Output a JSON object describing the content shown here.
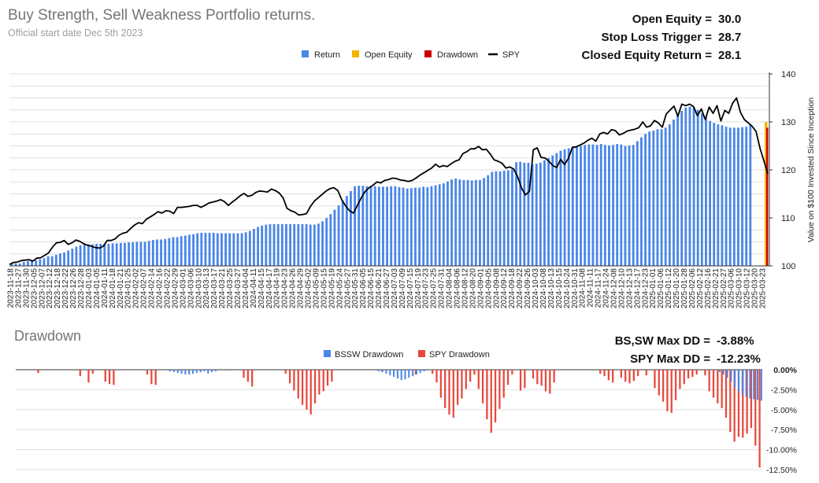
{
  "header": {
    "title": "Buy Strength, Sell Weakness Portfolio returns.",
    "subtitle": "Official start date Dec 5th 2023"
  },
  "stats": [
    {
      "label": "Open Equity =",
      "value": "30.0"
    },
    {
      "label": "Stop Loss Trigger =",
      "value": "28.7"
    },
    {
      "label": "Closed Equity Return =",
      "value": "28.1"
    }
  ],
  "drawdown_section": {
    "title": "Drawdown",
    "stats": [
      {
        "label": "BS,SW Max DD =",
        "value": "-3.88%"
      },
      {
        "label": "SPY Max DD =",
        "value": "-12.23%"
      }
    ]
  },
  "colors": {
    "return": "#4a86e8",
    "open_equity": "#f4b400",
    "drawdown": "#cc0000",
    "spy": "#000000",
    "spy_drawdown": "#e8473b",
    "grid": "#e0e0e0"
  },
  "chart_data": [
    {
      "type": "bar+line",
      "title": "Buy Strength, Sell Weakness Portfolio returns.",
      "ylabel": "Value on $100 Invested Since Inception",
      "ylim": [
        100,
        140
      ],
      "yticks": [
        100,
        110,
        120,
        130,
        140
      ],
      "legend": [
        "Return",
        "Open Equity",
        "Drawdown",
        "SPY"
      ],
      "x_tick_labels": [
        "2023-11-18",
        "2023-11-27",
        "2023-11-30",
        "2023-12-05",
        "2023-12-07",
        "2023-12-12",
        "2023-12-18",
        "2023-12-22",
        "2023-12-26",
        "2023-12-28",
        "2024-01-03",
        "2024-01-05",
        "2024-01-11",
        "2024-01-18",
        "2024-01-21",
        "2024-01-25",
        "2024-02-02",
        "2024-02-07",
        "2024-02-14",
        "2024-02-16",
        "2024-02-22",
        "2024-02-29",
        "2024-03-01",
        "2024-03-06",
        "2024-03-10",
        "2024-03-13",
        "2024-03-17",
        "2024-03-21",
        "2024-03-25",
        "2024-03-27",
        "2024-04-04",
        "2024-04-11",
        "2024-04-15",
        "2024-04-17",
        "2024-04-19",
        "2024-04-23",
        "2024-04-26",
        "2024-04-29",
        "2024-05-02",
        "2024-05-09",
        "2024-05-15",
        "2024-05-19",
        "2024-05-24",
        "2024-05-27",
        "2024-05-31",
        "2024-06-05",
        "2024-06-15",
        "2024-06-21",
        "2024-06-27",
        "2024-07-03",
        "2024-07-09",
        "2024-07-15",
        "2024-07-19",
        "2024-07-23",
        "2024-07-25",
        "2024-07-31",
        "2024-08-04",
        "2024-08-06",
        "2024-08-12",
        "2024-08-20",
        "2024-09-01",
        "2024-09-05",
        "2024-09-08",
        "2024-09-12",
        "2024-09-18",
        "2024-09-22",
        "2024-09-26",
        "2024-10-03",
        "2024-10-08",
        "2024-10-13",
        "2024-10-15",
        "2024-10-24",
        "2024-10-31",
        "2024-11-08",
        "2024-11-11",
        "2024-11-17",
        "2024-11-24",
        "2024-12-08",
        "2024-12-10",
        "2024-12-13",
        "2024-12-17",
        "2024-12-23",
        "2025-01-01",
        "2025-01-06",
        "2025-01-12",
        "2025-01-20",
        "2025-01-28",
        "2025-02-06",
        "2025-02-12",
        "2025-02-16",
        "2025-02-21",
        "2025-02-27",
        "2025-03-06",
        "2025-03-10",
        "2025-03-12",
        "2025-03-20",
        "2025-03-23"
      ],
      "return_series": [
        100.5,
        100.5,
        100.5,
        100.8,
        101,
        101,
        101.2,
        101.4,
        101.6,
        102,
        102,
        102.3,
        102.6,
        102.8,
        103.2,
        103.6,
        104,
        104.3,
        104.4,
        104.5,
        104.5,
        104.6,
        104.6,
        104.6,
        104.6,
        104.7,
        104.7,
        104.8,
        104.8,
        104.9,
        104.9,
        105,
        105,
        105,
        105.2,
        105.4,
        105.5,
        105.5,
        105.6,
        105.8,
        106,
        106,
        106.2,
        106.3,
        106.5,
        106.6,
        106.8,
        106.9,
        106.9,
        106.9,
        106.9,
        106.8,
        106.8,
        106.8,
        106.8,
        106.8,
        106.8,
        106.8,
        107,
        107.3,
        107.7,
        108.1,
        108.4,
        108.6,
        108.7,
        108.7,
        108.7,
        108.7,
        108.7,
        108.7,
        108.7,
        108.7,
        108.7,
        108.7,
        108.6,
        108.6,
        108.8,
        109.3,
        110,
        110.8,
        111.7,
        112.6,
        113.6,
        114.6,
        115.6,
        116.6,
        116.7,
        116.7,
        116.6,
        116.6,
        116.6,
        116.5,
        116.5,
        116.5,
        116.6,
        116.6,
        116.4,
        116.3,
        116.1,
        116.2,
        116.3,
        116.3,
        116.5,
        116.4,
        116.6,
        116.8,
        117,
        117.2,
        117.6,
        118.0,
        118.2,
        118.0,
        117.9,
        117.9,
        117.8,
        117.9,
        117.9,
        118.3,
        118.9,
        119.6,
        119.7,
        119.7,
        119.8,
        119.9,
        120.1,
        121.6,
        121.7,
        121.5,
        121.5,
        121.2,
        121.3,
        121.5,
        122,
        122.5,
        123,
        123.5,
        124,
        124.3,
        124.5,
        124.8,
        125,
        125,
        125.2,
        125.3,
        125.3,
        125.2,
        125.4,
        125.2,
        125.1,
        125.2,
        125.4,
        125.3,
        125.0,
        125.1,
        125.2,
        126,
        126.8,
        127.5,
        128,
        128.2,
        128.5,
        128.5,
        128.8,
        129.5,
        130.5,
        131.5,
        132.3,
        133.0,
        133.2,
        133.1,
        132.5,
        131.8,
        131.0,
        130.2,
        129.8,
        129.5,
        129.3,
        129.0,
        128.8,
        128.8,
        128.8,
        128.9,
        129.0,
        129.5
      ],
      "spy_series": [
        100.3,
        100.7,
        100.8,
        101.1,
        101.2,
        101.3,
        101.0,
        101.6,
        101.7,
        102.2,
        102.7,
        103.9,
        104.8,
        104.9,
        105.3,
        104.5,
        104.8,
        105.4,
        105.1,
        104.6,
        104.3,
        104.1,
        103.8,
        103.7,
        104.1,
        105.3,
        105.3,
        105.6,
        106.4,
        106.8,
        107.0,
        107.8,
        108.5,
        109.0,
        108.8,
        109.7,
        110.2,
        110.7,
        111.3,
        111.0,
        111.5,
        111.4,
        110.9,
        112.2,
        112.2,
        112.3,
        112.4,
        112.6,
        112.6,
        112.2,
        112.6,
        113.1,
        113.3,
        113.5,
        113.8,
        113.4,
        112.6,
        113.3,
        113.9,
        114.6,
        115.1,
        114.5,
        114.7,
        115.3,
        115.6,
        115.5,
        115.4,
        116.0,
        115.7,
        115.2,
        114.2,
        112.0,
        111.5,
        111.2,
        110.6,
        110.7,
        110.9,
        112.4,
        113.5,
        114.2,
        114.9,
        115.6,
        116.1,
        116.3,
        115.7,
        113.8,
        112.5,
        111.5,
        111.0,
        112.6,
        114.2,
        115.5,
        116.3,
        116.8,
        117.5,
        117.3,
        117.8,
        118.0,
        118.3,
        118.2,
        117.9,
        117.8,
        117.6,
        117.8,
        118.3,
        118.9,
        119.4,
        119.9,
        120.4,
        121.2,
        120.6,
        120.9,
        120.7,
        121.3,
        121.8,
        122.1,
        123.4,
        123.8,
        124.4,
        124.4,
        124.9,
        124.2,
        124.3,
        123.3,
        122.1,
        121.8,
        121.4,
        120.4,
        120.6,
        120.2,
        118.6,
        116.2,
        114.8,
        115.5,
        124.2,
        124.6,
        122.6,
        122.5,
        121.8,
        120.9,
        120.5,
        122.2,
        121.1,
        122.4,
        124.7,
        124.8,
        125.2,
        125.6,
        126.2,
        126.6,
        126.0,
        127.5,
        127.8,
        127.5,
        128.4,
        128.2,
        127.3,
        127.6,
        128.1,
        128.3,
        128.5,
        128.8,
        130.0,
        128.9,
        129.2,
        130.3,
        129.8,
        128.9,
        131.6,
        132.5,
        133.3,
        131.2,
        133.7,
        133.4,
        133.7,
        133.2,
        131.3,
        132.7,
        130.5,
        133.1,
        131.8,
        133.4,
        130.2,
        132.4,
        131.8,
        133.9,
        135.0,
        132.0,
        130.5,
        129.8,
        129.1,
        128.0,
        124.5,
        121.9,
        119.2
      ]
    },
    {
      "type": "bar",
      "title": "Drawdown",
      "ylim": [
        -12.5,
        0
      ],
      "yticks": [
        "0.00%",
        "-2.50%",
        "-5.00%",
        "-7.50%",
        "-10.00%",
        "-12.50%"
      ],
      "legend": [
        "BSSW Drawdown",
        "SPY Drawdown"
      ],
      "series": [
        {
          "name": "BSSW Drawdown",
          "min": -3.88,
          "values": [
            0,
            0,
            0,
            0,
            0,
            0,
            0,
            0,
            0,
            0,
            0,
            0,
            0,
            0,
            0,
            0,
            0,
            0,
            0,
            0,
            0,
            0,
            0,
            0,
            0,
            0,
            0,
            0,
            0,
            0,
            0,
            0,
            0,
            0,
            -0.1,
            0,
            0,
            0,
            0,
            0,
            -0.2,
            -0.3,
            -0.4,
            -0.5,
            -0.6,
            -0.6,
            -0.5,
            -0.4,
            -0.3,
            -0.2,
            -0.5,
            -0.3,
            -0.2,
            0,
            0,
            -0.1,
            0,
            0,
            0,
            0,
            0,
            0,
            0,
            0,
            0,
            0,
            0,
            0,
            0,
            0,
            0,
            0,
            0,
            0,
            0,
            0,
            -0.1,
            0,
            0,
            0,
            0,
            0,
            0,
            0,
            0,
            0,
            0,
            0,
            0,
            0,
            0,
            0,
            0,
            0,
            0,
            -0.2,
            -0.3,
            -0.5,
            -0.7,
            -0.9,
            -1.1,
            -1.3,
            -1.2,
            -1.0,
            -0.8,
            -0.6,
            -0.4,
            -0.2,
            -0.1,
            0,
            0,
            0,
            0,
            0,
            0,
            0,
            0,
            0,
            0,
            0,
            0,
            0,
            0,
            0,
            0,
            0,
            0,
            0,
            0,
            0,
            0,
            0,
            0,
            0,
            0,
            0,
            0,
            0,
            0,
            0,
            0,
            0,
            0,
            0,
            0,
            0,
            0,
            0,
            0,
            0,
            0,
            0,
            0,
            0,
            0,
            0,
            0,
            0,
            0,
            0,
            0,
            0,
            0,
            0,
            0,
            0,
            0,
            0,
            0,
            0,
            0,
            0,
            0,
            0,
            0,
            0,
            0,
            0,
            0,
            0,
            0,
            0,
            0,
            0,
            0,
            -0.3,
            -0.6,
            -1.0,
            -1.5,
            -2.2,
            -2.7,
            -3.1,
            -3.4,
            -3.6,
            -3.7,
            -3.8,
            -3.88
          ]
        },
        {
          "name": "SPY Drawdown",
          "min": -12.23,
          "values": [
            0,
            0,
            0,
            0,
            0,
            -0.4,
            0,
            0,
            0,
            0,
            0,
            0,
            0,
            0,
            0,
            -0.8,
            0,
            -1.6,
            -0.5,
            0,
            0,
            -1.5,
            -1.8,
            -1.9,
            0,
            0,
            0,
            0,
            0,
            0,
            0,
            -0.6,
            -1.8,
            -1.9,
            0,
            0,
            0,
            0,
            0,
            0,
            0,
            0,
            0,
            0,
            0,
            0,
            0,
            0,
            0,
            0,
            0,
            0,
            0,
            0,
            -1.0,
            -1.5,
            -2.1,
            0,
            0,
            0,
            0,
            0,
            0,
            0,
            -0.5,
            -1.7,
            -2.6,
            -3.6,
            -4.4,
            -5.0,
            -5.6,
            -4.2,
            -3.1,
            -2.7,
            -2.0,
            -1.5,
            0,
            0,
            0,
            0,
            0,
            0,
            0,
            0,
            0,
            0,
            0,
            -0.3,
            0,
            0,
            0,
            0,
            0,
            0,
            0,
            -0.6,
            0,
            0,
            0,
            -0.5,
            -1.6,
            -3.5,
            -4.8,
            -5.6,
            -6.0,
            -4.4,
            -3.6,
            -2.4,
            -1.5,
            -0.6,
            -2.4,
            -4.2,
            -6.2,
            -7.9,
            -6.6,
            -4.9,
            -3.5,
            -1.9,
            -0.6,
            0,
            -2.6,
            -2.3,
            0,
            -1.1,
            -1.8,
            -2.0,
            -2.7,
            -3.0,
            -1.6,
            0,
            0,
            0,
            0,
            0,
            0,
            0,
            0,
            0,
            0,
            -0.5,
            -0.8,
            -1.3,
            -1.6,
            0,
            -1.0,
            -1.5,
            -1.7,
            -1.4,
            -0.8,
            0,
            -0.7,
            0,
            -2.3,
            -3.2,
            -4.0,
            -5.2,
            -5.4,
            -3.8,
            -2.4,
            -1.8,
            -1.1,
            -0.9,
            -0.6,
            0,
            -0.7,
            -2.7,
            -3.5,
            -4.2,
            -4.8,
            -6.0,
            -7.8,
            -9.0,
            -8.4,
            -8.5,
            -8.0,
            -7.3,
            -9.5,
            -12.23
          ]
        }
      ]
    }
  ]
}
